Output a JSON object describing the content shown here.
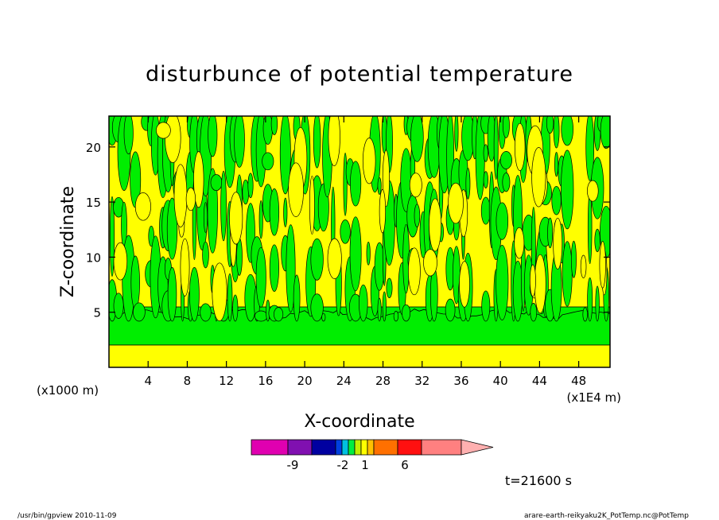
{
  "chart_data": {
    "type": "heatmap",
    "title": "disturbunce of potential temperature",
    "xlabel": "X-coordinate",
    "ylabel": "Z-coordinate",
    "x_unit_label": "(x1E4 m)",
    "y_unit_label": "(x1000 m)",
    "xlim": [
      0,
      51.2
    ],
    "ylim": [
      0,
      22.8
    ],
    "x_ticks": [
      4,
      8,
      12,
      16,
      20,
      24,
      28,
      32,
      36,
      40,
      44,
      48
    ],
    "y_ticks": [
      5,
      10,
      15,
      20
    ],
    "dominant_regions": [
      {
        "level": "near-zero positive",
        "color": "#ffff00"
      },
      {
        "level": "near-zero negative",
        "color": "#00ee00"
      }
    ],
    "colorbar": {
      "colors": [
        "#e000b0",
        "#8010b0",
        "#0000a0",
        "#0040e0",
        "#00c0e0",
        "#00ee40",
        "#c0f000",
        "#ffff00",
        "#ffc000",
        "#ff7000",
        "#ff1010",
        "#ff8080",
        "#ffb0b0"
      ],
      "tick_labels": [
        {
          "label": "-9",
          "value": -9
        },
        {
          "label": "-2",
          "value": -2
        },
        {
          "label": "1",
          "value": 1
        },
        {
          "label": "6",
          "value": 6
        }
      ]
    },
    "time_label": "t=21600 s"
  },
  "footer": {
    "left": "/usr/bin/gpview  2010-11-09",
    "right": "arare-earth-reikyaku2K_PotTemp.nc@PotTemp"
  }
}
